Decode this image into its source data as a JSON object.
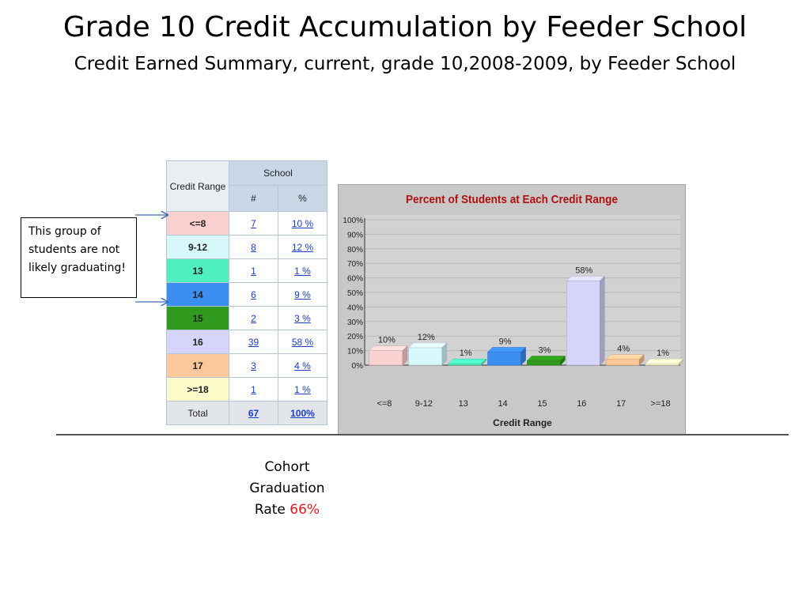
{
  "title": "Grade 10 Credit Accumulation by Feeder School",
  "subtitle": "Credit Earned Summary, current, grade 10,2008-2009, by Feeder School",
  "table": {
    "range_header": "Credit Range",
    "group_header": "School",
    "count_header": "#",
    "pct_header": "%",
    "rows": [
      {
        "range": "<=8",
        "count": "7",
        "pct": "10 %",
        "color": "#fbd0d0"
      },
      {
        "range": "9-12",
        "count": "8",
        "pct": "12 %",
        "color": "#d8f9fb"
      },
      {
        "range": "13",
        "count": "1",
        "pct": "1 %",
        "color": "#4ff0c0"
      },
      {
        "range": "14",
        "count": "6",
        "pct": "9 %",
        "color": "#3d8ef3"
      },
      {
        "range": "15",
        "count": "2",
        "pct": "3 %",
        "color": "#2f9a1e"
      },
      {
        "range": "16",
        "count": "39",
        "pct": "58 %",
        "color": "#d6d4fb"
      },
      {
        "range": "17",
        "count": "3",
        "pct": "4 %",
        "color": "#fcc89a"
      },
      {
        "range": ">=18",
        "count": "1",
        "pct": "1 %",
        "color": "#fdfbc9"
      }
    ],
    "total": {
      "range": "Total",
      "count": "67",
      "pct": "100%"
    }
  },
  "callout": "This group of students are not likely graduating!",
  "graduation": {
    "label_line1": "Cohort",
    "label_line2": "Graduation",
    "label_line3": "Rate",
    "rate": "66%"
  },
  "chart_data": {
    "type": "bar",
    "title": "Percent of Students at Each Credit Range",
    "xlabel": "Credit Range",
    "ylabel": "",
    "categories": [
      "<=8",
      "9-12",
      "13",
      "14",
      "15",
      "16",
      "17",
      ">=18"
    ],
    "values": [
      10,
      12,
      1,
      9,
      3,
      58,
      4,
      1
    ],
    "value_labels": [
      "10%",
      "12%",
      "1%",
      "9%",
      "3%",
      "58%",
      "4%",
      "1%"
    ],
    "yticks": [
      "0%",
      "10%",
      "20%",
      "30%",
      "40%",
      "50%",
      "60%",
      "70%",
      "80%",
      "90%",
      "100%"
    ],
    "ylim": [
      0,
      100
    ],
    "grid": true,
    "colors": [
      "#fbd0d0",
      "#d8f9fb",
      "#4ff0c0",
      "#3d8ef3",
      "#2f9a1e",
      "#d6d4fb",
      "#fcc89a",
      "#fdfbc9"
    ],
    "title_color": "#b01010"
  }
}
